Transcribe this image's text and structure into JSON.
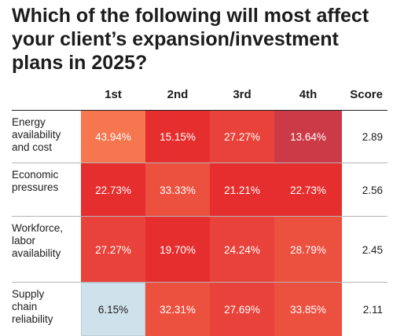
{
  "title": "Which of the following will most affect your client’s expansion/investment plans in 2025?",
  "colors": {
    "light": "#cfe2ec",
    "orange": "#f5764f",
    "red": "#e62e2e",
    "red_mid": "#e8423a",
    "red_light": "#ec503f",
    "crimson": "#cc3a47",
    "text_light": "#ffffff",
    "text_dark": "#1c1c1c"
  },
  "chart_data": {
    "type": "heatmap",
    "title": "Which of the following will most affect your client’s expansion/investment plans in 2025?",
    "columns": [
      "1st",
      "2nd",
      "3rd",
      "4th"
    ],
    "score_header": "Score",
    "rows": [
      {
        "label": "Energy\navailability\nand cost",
        "values": [
          "43.94%",
          "15.15%",
          "27.27%",
          "13.64%"
        ],
        "colors": [
          "#f5764f",
          "#e62e2e",
          "#e8423a",
          "#cc3a47"
        ],
        "score": "2.89"
      },
      {
        "label": "Economic\npressures",
        "values": [
          "22.73%",
          "33.33%",
          "21.21%",
          "22.73%"
        ],
        "colors": [
          "#e62e2e",
          "#ec503f",
          "#e62e2e",
          "#e62e2e"
        ],
        "score": "2.56"
      },
      {
        "label": "Workforce,\nlabor\navailability",
        "values": [
          "27.27%",
          "19.70%",
          "24.24%",
          "28.79%"
        ],
        "colors": [
          "#e8423a",
          "#e62e2e",
          "#e8423a",
          "#ec503f"
        ],
        "score": "2.45"
      },
      {
        "label": "Supply\nchain\nreliability",
        "values": [
          "6.15%",
          "32.31%",
          "27.69%",
          "33.85%"
        ],
        "colors": [
          "#cfe2ec",
          "#ec503f",
          "#e8423a",
          "#ec503f"
        ],
        "score": "2.11"
      }
    ]
  }
}
